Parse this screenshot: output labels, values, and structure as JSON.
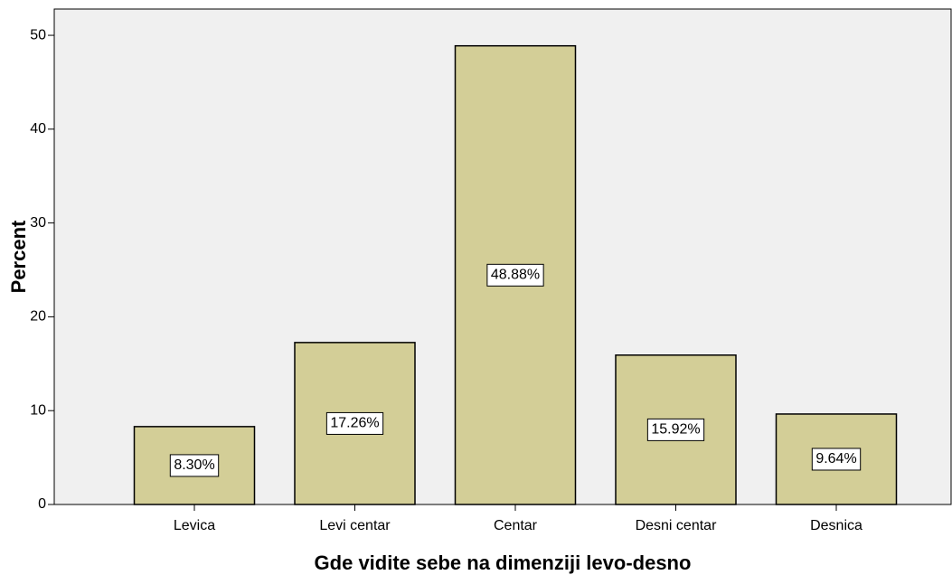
{
  "chart_data": {
    "type": "bar",
    "xlabel": "Gde vidite sebe na dimenziji levo-desno",
    "ylabel": "Percent",
    "categories": [
      "Levica",
      "Levi centar",
      "Centar",
      "Desni centar",
      "Desnica"
    ],
    "values": [
      8.3,
      17.26,
      48.88,
      15.92,
      9.64
    ],
    "value_labels": [
      "8.30%",
      "17.26%",
      "48.88%",
      "15.92%",
      "9.64%"
    ],
    "color": "#d3ce97",
    "ylim": [
      0,
      52.8
    ],
    "yticks": [
      0,
      10,
      20,
      30,
      40,
      50
    ]
  }
}
